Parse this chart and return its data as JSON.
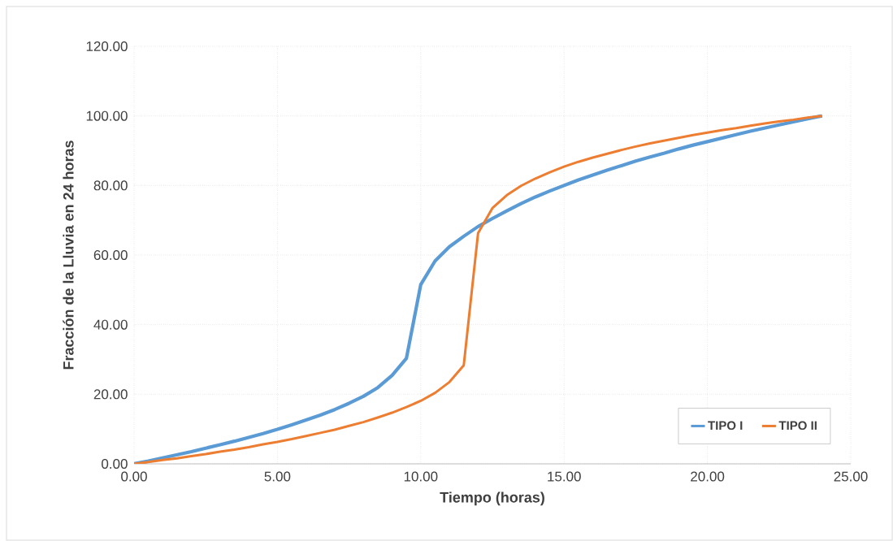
{
  "chart_data": {
    "type": "line",
    "xlabel": "Tiempo (horas)",
    "ylabel": "Fracción de la Lluvia en 24 horas",
    "x": [
      0,
      0.5,
      1,
      1.5,
      2,
      2.5,
      3,
      3.5,
      4,
      4.5,
      5,
      5.5,
      6,
      6.5,
      7,
      7.5,
      8,
      8.5,
      9,
      9.5,
      10,
      10.5,
      11,
      11.5,
      12,
      12.5,
      13,
      13.5,
      14,
      14.5,
      15,
      15.5,
      16,
      16.5,
      17,
      17.5,
      18,
      18.5,
      19,
      19.5,
      20,
      20.5,
      21,
      21.5,
      22,
      22.5,
      23,
      23.5,
      24
    ],
    "series": [
      {
        "name": "TIPO I",
        "color": "#5b9bd5",
        "values": [
          0,
          0.8,
          1.7,
          2.6,
          3.5,
          4.5,
          5.5,
          6.5,
          7.6,
          8.7,
          9.9,
          11.2,
          12.6,
          14,
          15.6,
          17.4,
          19.4,
          21.9,
          25.4,
          30.3,
          51.5,
          58.3,
          62.4,
          65.4,
          68.2,
          70.5,
          72.7,
          74.8,
          76.7,
          78.4,
          80,
          81.6,
          83,
          84.4,
          85.7,
          87,
          88.2,
          89.3,
          90.5,
          91.6,
          92.6,
          93.6,
          94.6,
          95.6,
          96.5,
          97.4,
          98.3,
          99.2,
          100
        ]
      },
      {
        "name": "TIPO II",
        "color": "#ed7d31",
        "values": [
          0,
          0.5,
          1.1,
          1.6,
          2.2,
          2.8,
          3.5,
          4.1,
          4.8,
          5.6,
          6.3,
          7.1,
          8,
          8.9,
          9.8,
          10.9,
          12,
          13.3,
          14.7,
          16.3,
          18.1,
          20.4,
          23.5,
          28.3,
          66.3,
          73.5,
          77.2,
          79.9,
          82,
          83.8,
          85.4,
          86.8,
          88,
          89.1,
          90.2,
          91.2,
          92.1,
          92.9,
          93.7,
          94.5,
          95.2,
          95.9,
          96.5,
          97.2,
          97.8,
          98.4,
          98.9,
          99.5,
          100
        ]
      }
    ],
    "xlim": [
      0,
      25
    ],
    "ylim": [
      0,
      120
    ],
    "xticks": [
      {
        "value": 0,
        "label": "0.00"
      },
      {
        "value": 5,
        "label": "5.00"
      },
      {
        "value": 10,
        "label": "10.00"
      },
      {
        "value": 15,
        "label": "15.00"
      },
      {
        "value": 20,
        "label": "20.00"
      },
      {
        "value": 25,
        "label": "25.00"
      }
    ],
    "yticks": [
      {
        "value": 0,
        "label": "0.00"
      },
      {
        "value": 20,
        "label": "20.00"
      },
      {
        "value": 40,
        "label": "40.00"
      },
      {
        "value": 60,
        "label": "60.00"
      },
      {
        "value": 80,
        "label": "80.00"
      },
      {
        "value": 100,
        "label": "100.00"
      },
      {
        "value": 120,
        "label": "120.00"
      }
    ],
    "grid": true,
    "legend": "bottom right",
    "line_style": "solid"
  }
}
